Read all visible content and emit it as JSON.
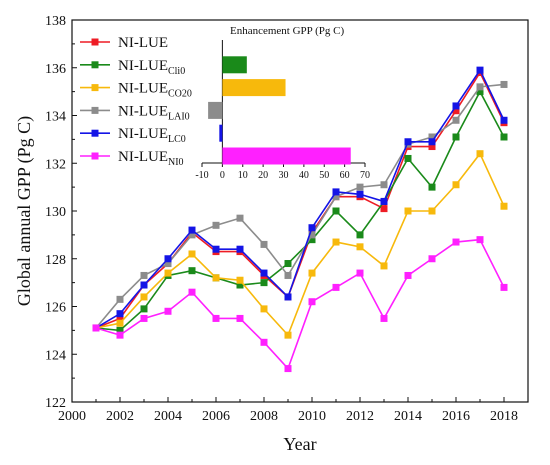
{
  "chart_data": {
    "type": "line",
    "xlabel": "Year",
    "ylabel": "Global annual GPP (Pg C)",
    "xlim": [
      2000,
      2019
    ],
    "ylim": [
      122,
      138
    ],
    "xticks": [
      2000,
      2002,
      2004,
      2006,
      2008,
      2010,
      2012,
      2014,
      2016,
      2018
    ],
    "yticks": [
      122,
      124,
      126,
      128,
      130,
      132,
      134,
      136,
      138
    ],
    "x": [
      2001,
      2002,
      2003,
      2004,
      2005,
      2006,
      2007,
      2008,
      2009,
      2010,
      2011,
      2012,
      2013,
      2014,
      2015,
      2016,
      2017,
      2018
    ],
    "legend_position": "top-left",
    "series": [
      {
        "base": "NI-LUE",
        "sub": "",
        "color": "#ee1c25",
        "values": [
          125.1,
          125.5,
          126.9,
          127.8,
          129.1,
          128.3,
          128.3,
          127.3,
          126.4,
          129.1,
          130.6,
          130.6,
          130.1,
          132.7,
          132.7,
          134.2,
          135.8,
          133.7
        ]
      },
      {
        "base": "NI-LUE",
        "sub": "Cli0",
        "color": "#1a8a1a",
        "values": [
          125.1,
          125.0,
          125.9,
          127.3,
          127.5,
          127.2,
          126.9,
          127.0,
          127.8,
          128.8,
          130.0,
          129.0,
          130.4,
          132.2,
          131.0,
          133.1,
          135.0,
          133.1
        ]
      },
      {
        "base": "NI-LUE",
        "sub": "CO20",
        "color": "#f7b90c",
        "values": [
          125.1,
          125.3,
          126.4,
          127.4,
          128.2,
          127.2,
          127.1,
          125.9,
          124.8,
          127.4,
          128.7,
          128.5,
          127.7,
          130.0,
          130.0,
          131.1,
          132.4,
          130.2
        ]
      },
      {
        "base": "NI-LUE",
        "sub": "LAI0",
        "color": "#8c8c8c",
        "values": [
          125.1,
          126.3,
          127.3,
          127.8,
          129.0,
          129.4,
          129.7,
          128.6,
          127.3,
          129.0,
          130.6,
          131.0,
          131.1,
          132.8,
          133.1,
          133.8,
          135.2,
          135.3
        ]
      },
      {
        "base": "NI-LUE",
        "sub": "LC0",
        "color": "#1414e6",
        "values": [
          125.1,
          125.7,
          126.9,
          128.0,
          129.2,
          128.4,
          128.4,
          127.4,
          126.4,
          129.3,
          130.8,
          130.7,
          130.4,
          132.9,
          132.9,
          134.4,
          135.9,
          133.8
        ]
      },
      {
        "base": "NI-LUE",
        "sub": "NI0",
        "color": "#ff20ff",
        "values": [
          125.1,
          124.8,
          125.5,
          125.8,
          126.6,
          125.5,
          125.5,
          124.5,
          123.4,
          126.2,
          126.8,
          127.4,
          125.5,
          127.3,
          128.0,
          128.7,
          128.8,
          126.8
        ]
      }
    ],
    "inset": {
      "type": "bar",
      "orientation": "horizontal",
      "title": "Enhancement GPP (Pg C)",
      "xlim": [
        -10,
        70
      ],
      "xticks": [
        -10,
        0,
        10,
        20,
        30,
        40,
        50,
        60,
        70
      ],
      "values": [
        0,
        12,
        31,
        -7,
        -1.5,
        63
      ]
    }
  }
}
